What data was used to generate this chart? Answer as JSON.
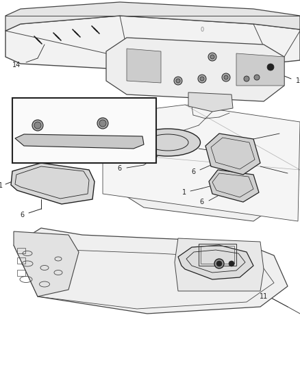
{
  "bg_color": "#ffffff",
  "line_color": "#444444",
  "dark_color": "#222222",
  "gray_fill": "#e8e8e8",
  "light_fill": "#f4f4f4",
  "label_fontsize": 7,
  "figsize": [
    4.38,
    5.33
  ],
  "dpi": 100
}
